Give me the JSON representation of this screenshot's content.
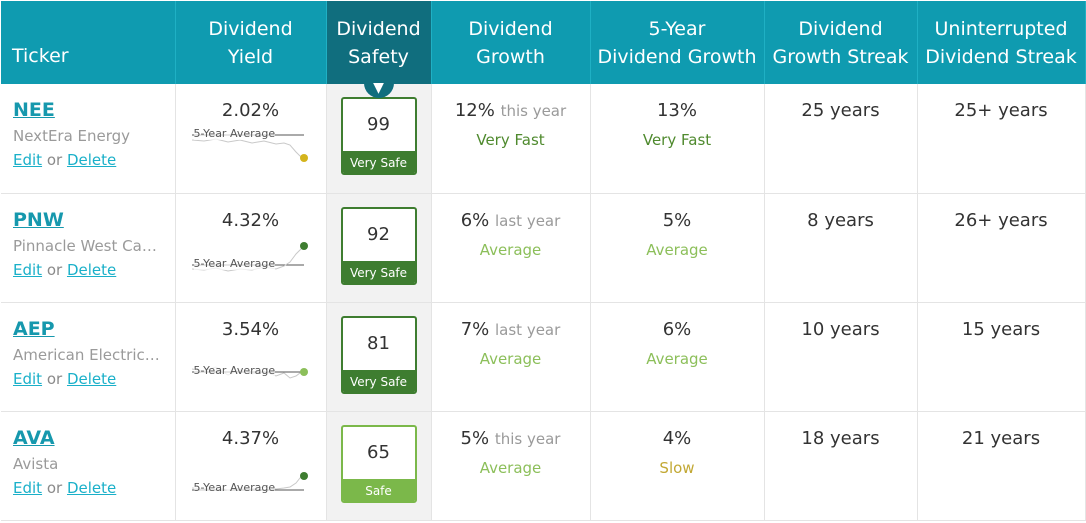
{
  "colors": {
    "header_bg": "#0f9bb0",
    "header_sorted_bg": "#106e7e",
    "link": "#1698ad",
    "very_safe": "#3e7d30",
    "safe": "#7bb84a",
    "very_fast": "#4f8a2e",
    "average": "#8cbf5a",
    "slow": "#c2a834"
  },
  "headers": {
    "ticker": "Ticker",
    "yield_1": "Dividend",
    "yield_2": "Yield",
    "safety_1": "Dividend",
    "safety_2": "Safety",
    "growth_1": "Dividend",
    "growth_2": "Growth",
    "five_year_1": "5-Year",
    "five_year_2": "Dividend Growth",
    "streak_1": "Dividend",
    "streak_2": "Growth Streak",
    "uninterrupted_1": "Uninterrupted",
    "uninterrupted_2": "Dividend Streak",
    "sort_arrow": "▼"
  },
  "common": {
    "edit": "Edit",
    "or": "or",
    "delete": "Delete",
    "avg_label": "5-Year Average"
  },
  "rows": [
    {
      "ticker": "NEE",
      "company": "NextEra Energy",
      "yield": "2.02%",
      "spark_dot_color": "#d4b41c",
      "safety_score": "99",
      "safety_label": "Very Safe",
      "growth_value": "12%",
      "growth_period": "this year",
      "growth_rating": "Very Fast",
      "five_year_value": "13%",
      "five_year_rating": "Very Fast",
      "growth_streak": "25 years",
      "uninterrupted_streak": "25+ years"
    },
    {
      "ticker": "PNW",
      "company": "Pinnacle West Capi…",
      "yield": "4.32%",
      "spark_dot_color": "#3e7d30",
      "safety_score": "92",
      "safety_label": "Very Safe",
      "growth_value": "6%",
      "growth_period": "last year",
      "growth_rating": "Average",
      "five_year_value": "5%",
      "five_year_rating": "Average",
      "growth_streak": "8 years",
      "uninterrupted_streak": "26+ years"
    },
    {
      "ticker": "AEP",
      "company": "American Electric P…",
      "yield": "3.54%",
      "spark_dot_color": "#8cbf5a",
      "safety_score": "81",
      "safety_label": "Very Safe",
      "growth_value": "7%",
      "growth_period": "last year",
      "growth_rating": "Average",
      "five_year_value": "6%",
      "five_year_rating": "Average",
      "growth_streak": "10 years",
      "uninterrupted_streak": "15 years"
    },
    {
      "ticker": "AVA",
      "company": "Avista",
      "yield": "4.37%",
      "spark_dot_color": "#3e7d30",
      "safety_score": "65",
      "safety_label": "Safe",
      "growth_value": "5%",
      "growth_period": "this year",
      "growth_rating": "Average",
      "five_year_value": "4%",
      "five_year_rating": "Slow",
      "growth_streak": "18 years",
      "uninterrupted_streak": "21 years"
    }
  ]
}
